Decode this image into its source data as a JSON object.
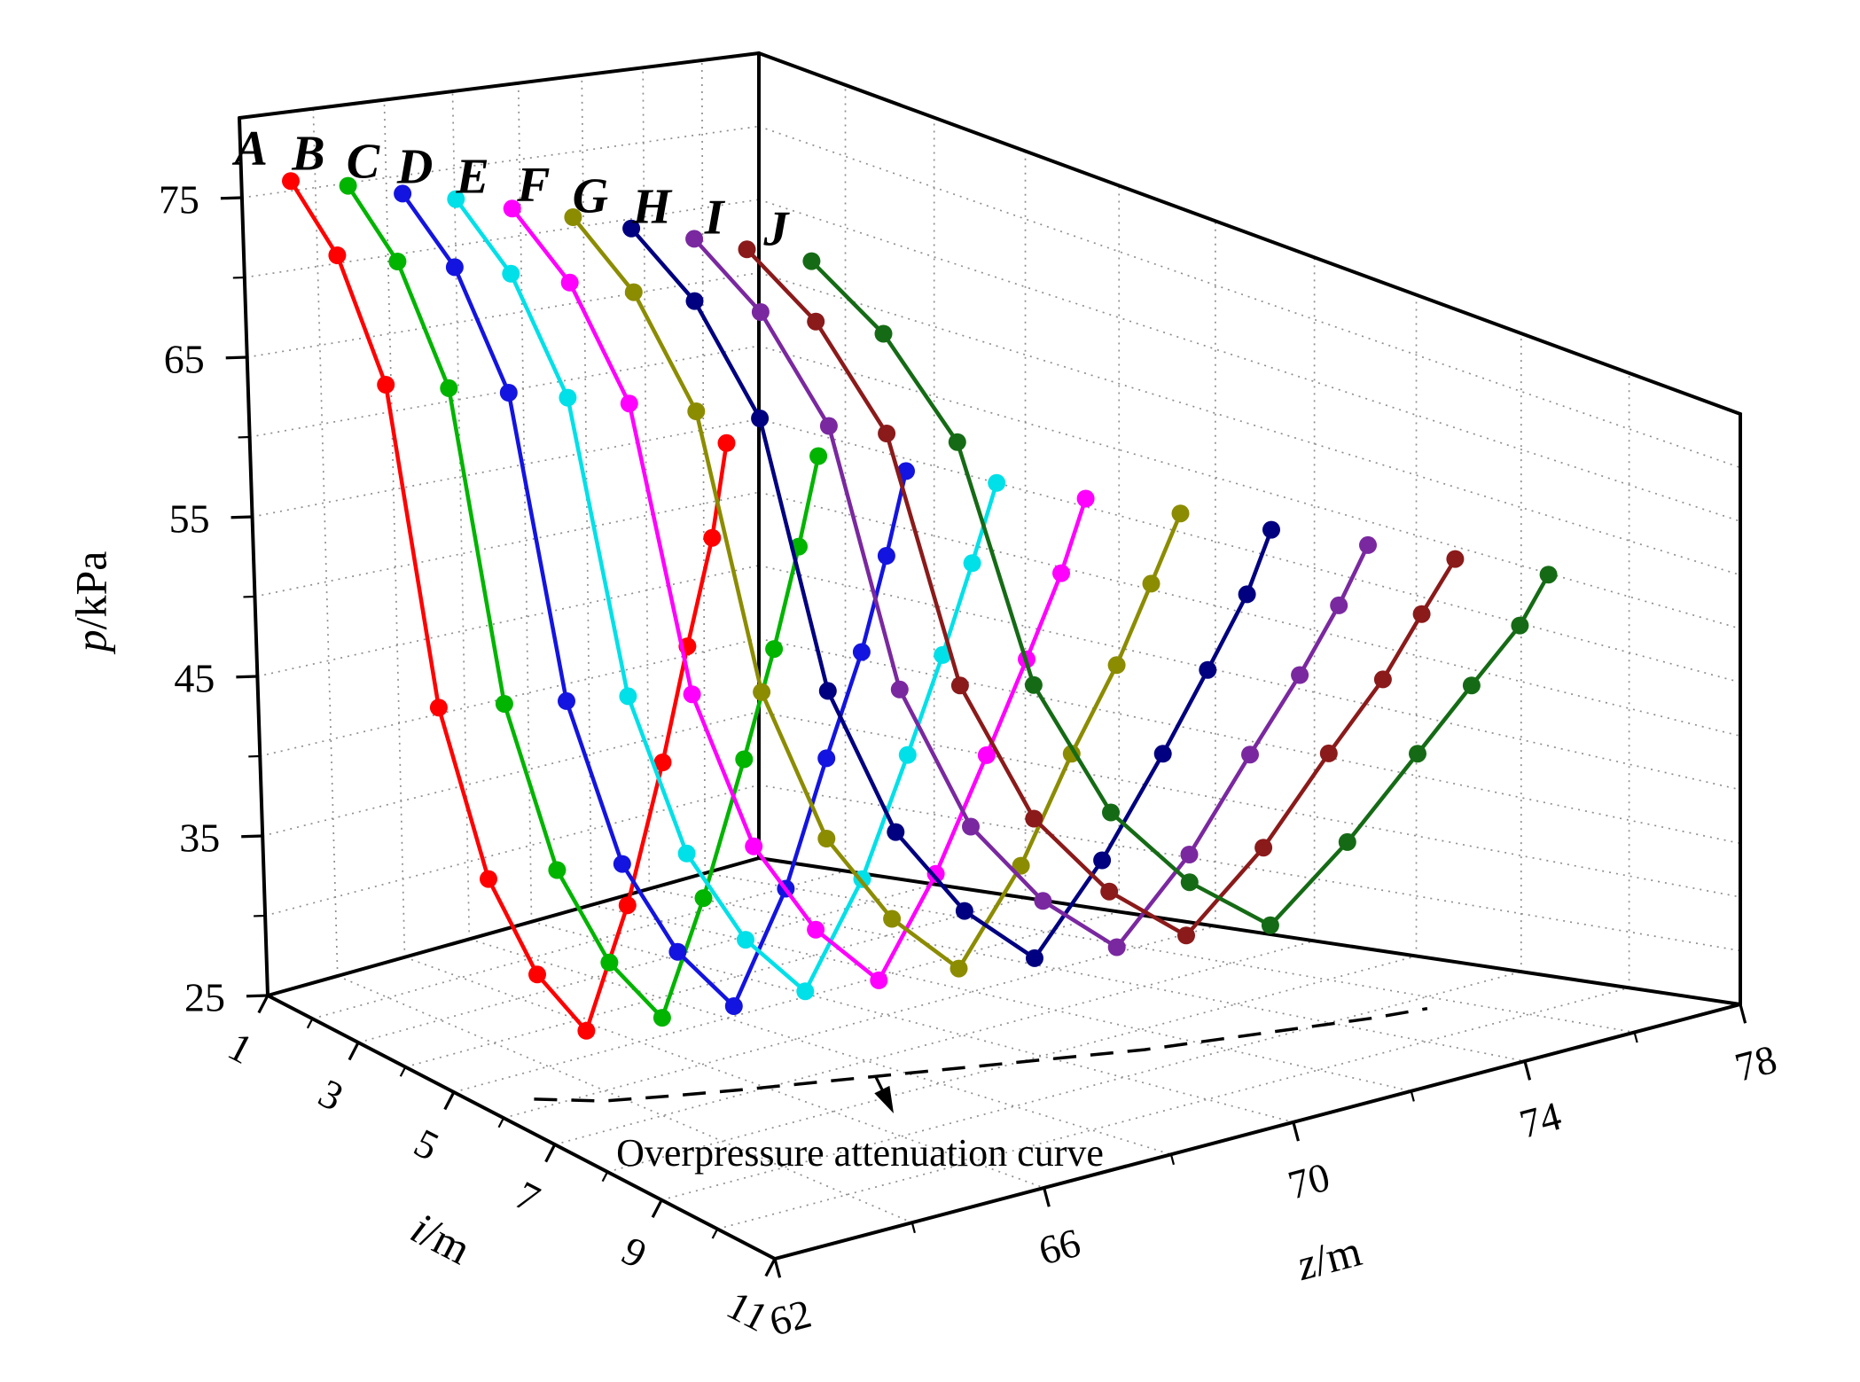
{
  "chart_data": {
    "type": "line",
    "subtype": "3d-line-scatter",
    "title": "",
    "colors": {
      "background": "#FFFFFF",
      "wall": "#FFFFFF",
      "grid": "#8F8F8F",
      "axis": "#000000",
      "annotation": "#000000"
    },
    "axes": {
      "p": {
        "label_italic": "p",
        "label_suffix": "/kPa",
        "min": 25,
        "max": 75,
        "wall_top": 80,
        "major_ticks": [
          25,
          35,
          45,
          55,
          65,
          75
        ],
        "minor_ticks": [
          30,
          40,
          50,
          60,
          70
        ],
        "grid": [
          30,
          35,
          40,
          45,
          50,
          55,
          60,
          65,
          70,
          75
        ]
      },
      "i": {
        "label_italic": "i",
        "label_suffix": "/m",
        "min": 1,
        "max": 11,
        "major_ticks": [
          1,
          3,
          5,
          7,
          9,
          11
        ],
        "minor_ticks": [
          2,
          4,
          6,
          8,
          10
        ],
        "grid": [
          2,
          3,
          4,
          5,
          6,
          7,
          8,
          9,
          10
        ]
      },
      "z": {
        "label_italic": "z",
        "label_suffix": "/m",
        "min": 62,
        "max": 78,
        "major_ticks": [
          62,
          66,
          70,
          74,
          78
        ],
        "minor_ticks": [
          64,
          68,
          72,
          76
        ],
        "grid": [
          64,
          66,
          68,
          70,
          72,
          74,
          76
        ]
      }
    },
    "series": [
      {
        "name": "A",
        "color": "#FF0000",
        "points": [
          [
            1.4,
            62.8,
            76
          ],
          [
            2.3,
            62.8,
            71.9
          ],
          [
            3.2,
            62.8,
            64.6
          ],
          [
            4.1,
            62.8,
            46
          ],
          [
            5,
            62.8,
            36.9
          ],
          [
            5.9,
            62.8,
            32.5
          ],
          [
            6.8,
            62.8,
            30.5
          ],
          [
            6.8,
            63.6,
            37.2
          ],
          [
            6.8,
            64.3,
            45.2
          ],
          [
            6.8,
            64.8,
            51.9
          ],
          [
            6.8,
            65.3,
            58.3
          ],
          [
            6.8,
            65.6,
            64
          ]
        ]
      },
      {
        "name": "B",
        "color": "#00B400",
        "points": [
          [
            1.7,
            63.9,
            75.6
          ],
          [
            2.6,
            63.9,
            71.5
          ],
          [
            3.5,
            63.9,
            64.4
          ],
          [
            4.4,
            63.9,
            46.1
          ],
          [
            5.3,
            63.9,
            37.2
          ],
          [
            6.2,
            63.9,
            32.9
          ],
          [
            7.1,
            63.9,
            30.9
          ],
          [
            7.1,
            64.7,
            37.4
          ],
          [
            7.1,
            65.5,
            45.3
          ],
          [
            7.1,
            66.1,
            51.8
          ],
          [
            7.1,
            66.6,
            58
          ],
          [
            7.1,
            67,
            63.6
          ]
        ]
      },
      {
        "name": "C",
        "color": "#1414E0",
        "points": [
          [
            2,
            64.9,
            75.1
          ],
          [
            2.9,
            64.9,
            71.2
          ],
          [
            3.8,
            64.9,
            64.2
          ],
          [
            4.7,
            64.9,
            46.2
          ],
          [
            5.6,
            64.9,
            37.4
          ],
          [
            6.5,
            64.9,
            33.3
          ],
          [
            7.4,
            64.9,
            31.3
          ],
          [
            7.4,
            65.9,
            37.7
          ],
          [
            7.4,
            66.7,
            45.3
          ],
          [
            7.4,
            67.4,
            51.7
          ],
          [
            7.4,
            67.9,
            57.7
          ],
          [
            7.4,
            68.3,
            63.1
          ]
        ]
      },
      {
        "name": "D",
        "color": "#00E0E8",
        "points": [
          [
            2.2,
            66,
            74.7
          ],
          [
            3.1,
            66,
            70.8
          ],
          [
            4,
            66,
            63.9
          ],
          [
            4.9,
            66,
            46.3
          ],
          [
            5.8,
            66,
            37.7
          ],
          [
            6.7,
            66,
            33.6
          ],
          [
            7.6,
            66,
            31.7
          ],
          [
            7.6,
            67.1,
            37.9
          ],
          [
            7.6,
            68,
            45.3
          ],
          [
            7.6,
            68.7,
            51.5
          ],
          [
            7.6,
            69.3,
            57.4
          ],
          [
            7.6,
            69.8,
            62.7
          ]
        ]
      },
      {
        "name": "E",
        "color": "#FF00FF",
        "points": [
          [
            2.5,
            67,
            74.2
          ],
          [
            3.4,
            67,
            70.4
          ],
          [
            4.3,
            67,
            63.7
          ],
          [
            5.2,
            67,
            46.4
          ],
          [
            6.1,
            67,
            38
          ],
          [
            7,
            67,
            34
          ],
          [
            7.9,
            67,
            32.1
          ],
          [
            7.9,
            68.1,
            38.1
          ],
          [
            7.9,
            69.1,
            45.3
          ],
          [
            7.9,
            69.9,
            51.4
          ],
          [
            7.9,
            70.6,
            57.1
          ],
          [
            7.9,
            71.1,
            62.2
          ]
        ]
      },
      {
        "name": "F",
        "color": "#8C8C00",
        "points": [
          [
            2.8,
            68.1,
            73.8
          ],
          [
            3.7,
            68.1,
            70
          ],
          [
            4.6,
            68.1,
            63.4
          ],
          [
            5.5,
            68.1,
            46.5
          ],
          [
            6.4,
            68.1,
            38.3
          ],
          [
            7.3,
            68.1,
            34.4
          ],
          [
            8.2,
            68.1,
            32.5
          ],
          [
            8.2,
            69.3,
            38.4
          ],
          [
            8.2,
            70.3,
            45.4
          ],
          [
            8.2,
            71.2,
            51.2
          ],
          [
            8.2,
            71.9,
            56.8
          ],
          [
            8.2,
            72.5,
            61.8
          ]
        ]
      },
      {
        "name": "G",
        "color": "#000080",
        "points": [
          [
            3.1,
            69.1,
            73.3
          ],
          [
            4,
            69.1,
            69.7
          ],
          [
            4.9,
            69.1,
            63.2
          ],
          [
            5.8,
            69.1,
            46.6
          ],
          [
            6.7,
            69.1,
            38.6
          ],
          [
            7.6,
            69.1,
            34.7
          ],
          [
            8.5,
            69.1,
            32.9
          ],
          [
            8.5,
            70.4,
            38.6
          ],
          [
            8.5,
            71.6,
            45.4
          ],
          [
            8.5,
            72.5,
            51.1
          ],
          [
            8.5,
            73.3,
            56.5
          ],
          [
            8.5,
            73.8,
            61.3
          ]
        ]
      },
      {
        "name": "H",
        "color": "#7A28A0",
        "points": [
          [
            3.4,
            70.2,
            72.9
          ],
          [
            4.3,
            70.2,
            69.3
          ],
          [
            5.2,
            70.2,
            63
          ],
          [
            6.1,
            70.2,
            46.7
          ],
          [
            7,
            70.2,
            38.8
          ],
          [
            7.9,
            70.2,
            35.1
          ],
          [
            8.8,
            70.2,
            33.3
          ],
          [
            8.8,
            71.6,
            38.8
          ],
          [
            8.8,
            72.8,
            45.4
          ],
          [
            8.8,
            73.8,
            51
          ],
          [
            8.8,
            74.6,
            56.2
          ],
          [
            8.8,
            75.2,
            60.9
          ]
        ]
      },
      {
        "name": "I",
        "color": "#8B1A1A",
        "points": [
          [
            3.6,
            71.2,
            72.4
          ],
          [
            4.5,
            71.2,
            68.9
          ],
          [
            5.4,
            71.2,
            62.7
          ],
          [
            6.3,
            71.2,
            46.9
          ],
          [
            7.2,
            71.2,
            39.1
          ],
          [
            8.1,
            71.2,
            35.4
          ],
          [
            9,
            71.2,
            33.7
          ],
          [
            9,
            72.7,
            39
          ],
          [
            9,
            74,
            45.4
          ],
          [
            9,
            75.1,
            50.8
          ],
          [
            9,
            75.9,
            55.9
          ],
          [
            9,
            76.6,
            60.4
          ]
        ]
      },
      {
        "name": "J",
        "color": "#156B15",
        "points": [
          [
            3.9,
            72.3,
            72
          ],
          [
            4.8,
            72.3,
            68.5
          ],
          [
            5.7,
            72.3,
            62.5
          ],
          [
            6.6,
            72.3,
            47
          ],
          [
            7.5,
            72.3,
            39.4
          ],
          [
            8.4,
            72.3,
            35.8
          ],
          [
            9.3,
            72.3,
            34.1
          ],
          [
            9.3,
            73.8,
            39.3
          ],
          [
            9.3,
            75.2,
            45.5
          ],
          [
            9.3,
            76.3,
            50.7
          ],
          [
            9.3,
            77.3,
            55.6
          ],
          [
            9.3,
            77.9,
            60
          ]
        ]
      }
    ],
    "floor_curve": {
      "style": "dashed",
      "p": 26.5,
      "points": [
        [
          6.4,
          62.2
        ],
        [
          6.9,
          63
        ],
        [
          7.2,
          63.9
        ],
        [
          7.5,
          64.9
        ],
        [
          7.8,
          66
        ],
        [
          8.1,
          67.1
        ],
        [
          8.4,
          68.2
        ],
        [
          8.7,
          69.3
        ],
        [
          9,
          70.4
        ],
        [
          9.2,
          71.5
        ],
        [
          9.4,
          72.6
        ],
        [
          9.6,
          73.7
        ],
        [
          9.7,
          74.6
        ]
      ]
    },
    "annotation": {
      "text": "Overpressure attenuation curve"
    }
  }
}
